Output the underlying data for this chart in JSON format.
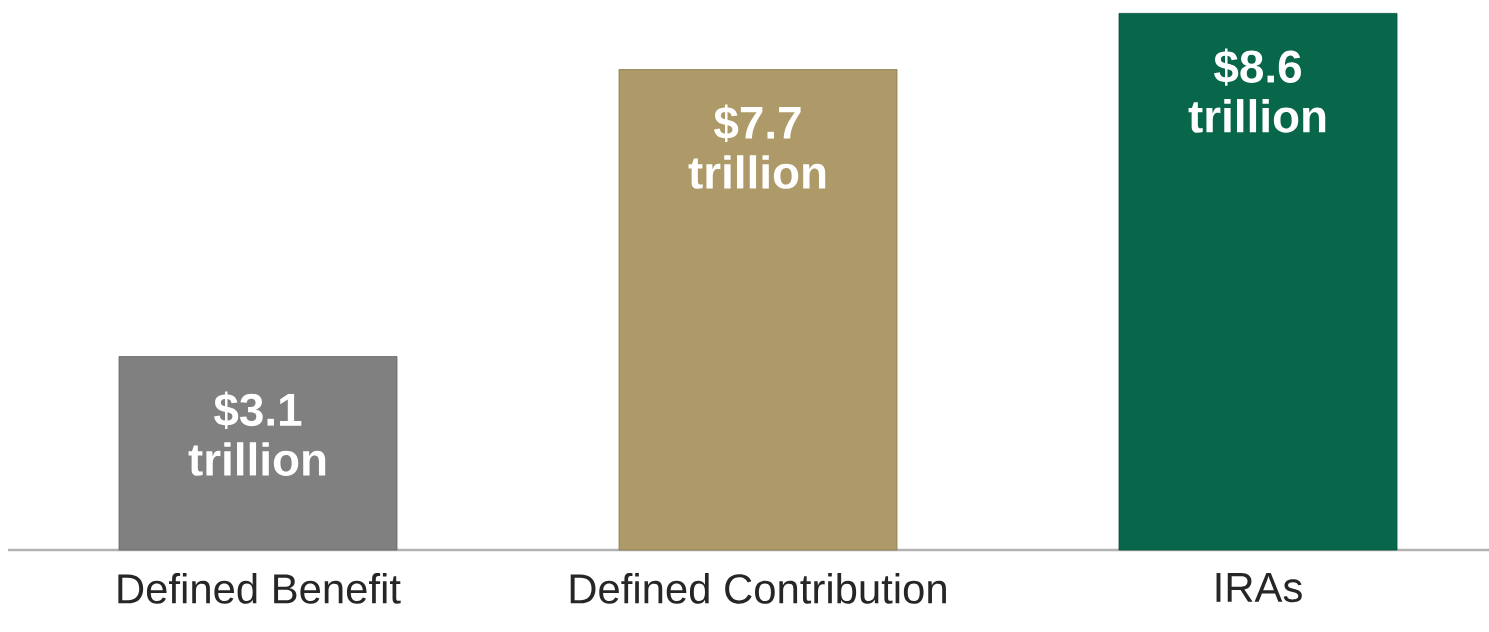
{
  "chart_data": {
    "type": "bar",
    "categories": [
      "Defined Benefit",
      "Defined Contribution",
      "IRAs"
    ],
    "values": [
      3.1,
      7.7,
      8.6
    ],
    "colors": [
      "#808080",
      "#ad9a68",
      "#08664a"
    ],
    "value_labels": [
      "$3.1 trillion",
      "$7.7 trillion",
      "$8.6 trillion"
    ]
  }
}
